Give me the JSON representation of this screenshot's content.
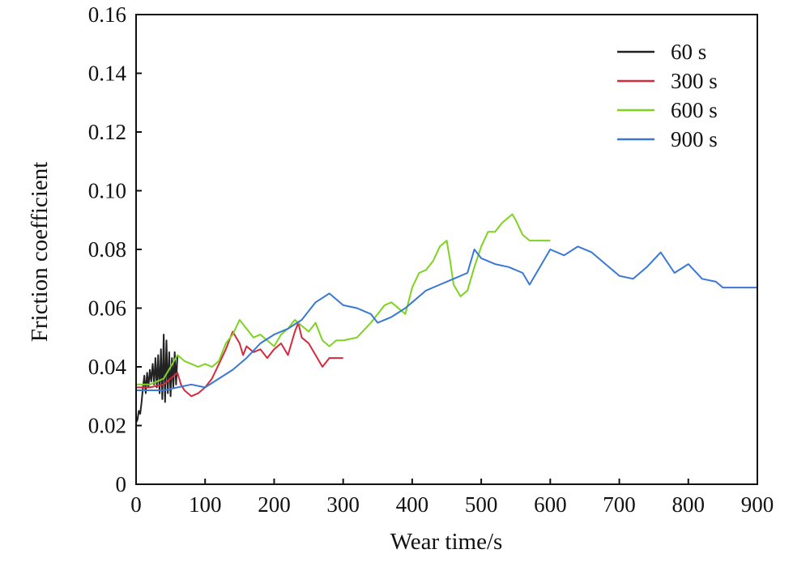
{
  "chart_data": {
    "type": "line",
    "xlabel": "Wear time/s",
    "ylabel": "Friction coefficient",
    "xlim": [
      0,
      900
    ],
    "ylim": [
      0,
      0.16
    ],
    "x_ticks": [
      0,
      100,
      200,
      300,
      400,
      500,
      600,
      700,
      800,
      900
    ],
    "y_ticks": [
      0,
      0.02,
      0.04,
      0.06,
      0.08,
      0.1,
      0.12,
      0.14,
      0.16
    ],
    "y_tick_labels": [
      "0",
      "0.02",
      "0.04",
      "0.06",
      "0.08",
      "0.10",
      "0.12",
      "0.14",
      "0.16"
    ],
    "grid": false,
    "legend_position": "top-right",
    "series": [
      {
        "name": "60 s",
        "color": "#222222",
        "x": [
          0,
          2,
          4,
          6,
          8,
          10,
          12,
          14,
          16,
          18,
          20,
          22,
          24,
          26,
          28,
          30,
          32,
          34,
          36,
          38,
          40,
          42,
          44,
          46,
          48,
          50,
          52,
          54,
          56,
          58,
          60
        ],
        "y": [
          0.021,
          0.022,
          0.025,
          0.024,
          0.028,
          0.033,
          0.037,
          0.031,
          0.038,
          0.033,
          0.039,
          0.035,
          0.041,
          0.034,
          0.043,
          0.033,
          0.044,
          0.031,
          0.046,
          0.029,
          0.051,
          0.028,
          0.049,
          0.031,
          0.045,
          0.03,
          0.043,
          0.033,
          0.045,
          0.034,
          0.044
        ]
      },
      {
        "name": "300 s",
        "color": "#d62a3c",
        "x": [
          0,
          20,
          40,
          50,
          60,
          65,
          70,
          80,
          90,
          100,
          110,
          120,
          130,
          140,
          150,
          155,
          160,
          170,
          180,
          190,
          200,
          210,
          220,
          230,
          235,
          240,
          250,
          260,
          270,
          280,
          290,
          300
        ],
        "y": [
          0.033,
          0.033,
          0.034,
          0.036,
          0.038,
          0.034,
          0.032,
          0.03,
          0.031,
          0.033,
          0.036,
          0.041,
          0.046,
          0.052,
          0.048,
          0.044,
          0.047,
          0.045,
          0.046,
          0.043,
          0.046,
          0.048,
          0.044,
          0.052,
          0.055,
          0.05,
          0.048,
          0.044,
          0.04,
          0.043,
          0.043,
          0.043
        ]
      },
      {
        "name": "600 s",
        "color": "#7ed321",
        "x": [
          0,
          20,
          40,
          50,
          60,
          70,
          80,
          90,
          100,
          110,
          120,
          130,
          140,
          150,
          160,
          170,
          180,
          190,
          200,
          210,
          220,
          230,
          240,
          250,
          260,
          270,
          280,
          290,
          300,
          320,
          340,
          360,
          370,
          380,
          390,
          400,
          410,
          420,
          430,
          440,
          450,
          455,
          460,
          470,
          480,
          490,
          500,
          510,
          520,
          530,
          540,
          545,
          550,
          560,
          570,
          580,
          600
        ],
        "y": [
          0.034,
          0.034,
          0.036,
          0.04,
          0.044,
          0.042,
          0.041,
          0.04,
          0.041,
          0.04,
          0.042,
          0.048,
          0.051,
          0.056,
          0.053,
          0.05,
          0.051,
          0.049,
          0.047,
          0.051,
          0.053,
          0.056,
          0.054,
          0.052,
          0.055,
          0.049,
          0.047,
          0.049,
          0.049,
          0.05,
          0.055,
          0.061,
          0.062,
          0.06,
          0.058,
          0.067,
          0.072,
          0.073,
          0.076,
          0.081,
          0.083,
          0.076,
          0.068,
          0.064,
          0.066,
          0.074,
          0.081,
          0.086,
          0.086,
          0.089,
          0.091,
          0.092,
          0.09,
          0.085,
          0.083,
          0.083,
          0.083
        ]
      },
      {
        "name": "900 s",
        "color": "#3a78d6",
        "x": [
          0,
          40,
          60,
          80,
          100,
          120,
          140,
          160,
          180,
          200,
          220,
          240,
          260,
          280,
          300,
          320,
          340,
          350,
          370,
          390,
          400,
          420,
          440,
          460,
          480,
          490,
          500,
          520,
          540,
          560,
          570,
          580,
          600,
          620,
          640,
          660,
          680,
          700,
          720,
          740,
          760,
          780,
          800,
          820,
          840,
          850,
          870,
          900
        ],
        "y": [
          0.032,
          0.032,
          0.033,
          0.034,
          0.033,
          0.036,
          0.039,
          0.043,
          0.048,
          0.051,
          0.053,
          0.056,
          0.062,
          0.065,
          0.061,
          0.06,
          0.058,
          0.055,
          0.057,
          0.06,
          0.062,
          0.066,
          0.068,
          0.07,
          0.072,
          0.08,
          0.077,
          0.075,
          0.074,
          0.072,
          0.068,
          0.072,
          0.08,
          0.078,
          0.081,
          0.079,
          0.075,
          0.071,
          0.07,
          0.074,
          0.079,
          0.072,
          0.075,
          0.07,
          0.069,
          0.067,
          0.067,
          0.067
        ]
      }
    ]
  }
}
